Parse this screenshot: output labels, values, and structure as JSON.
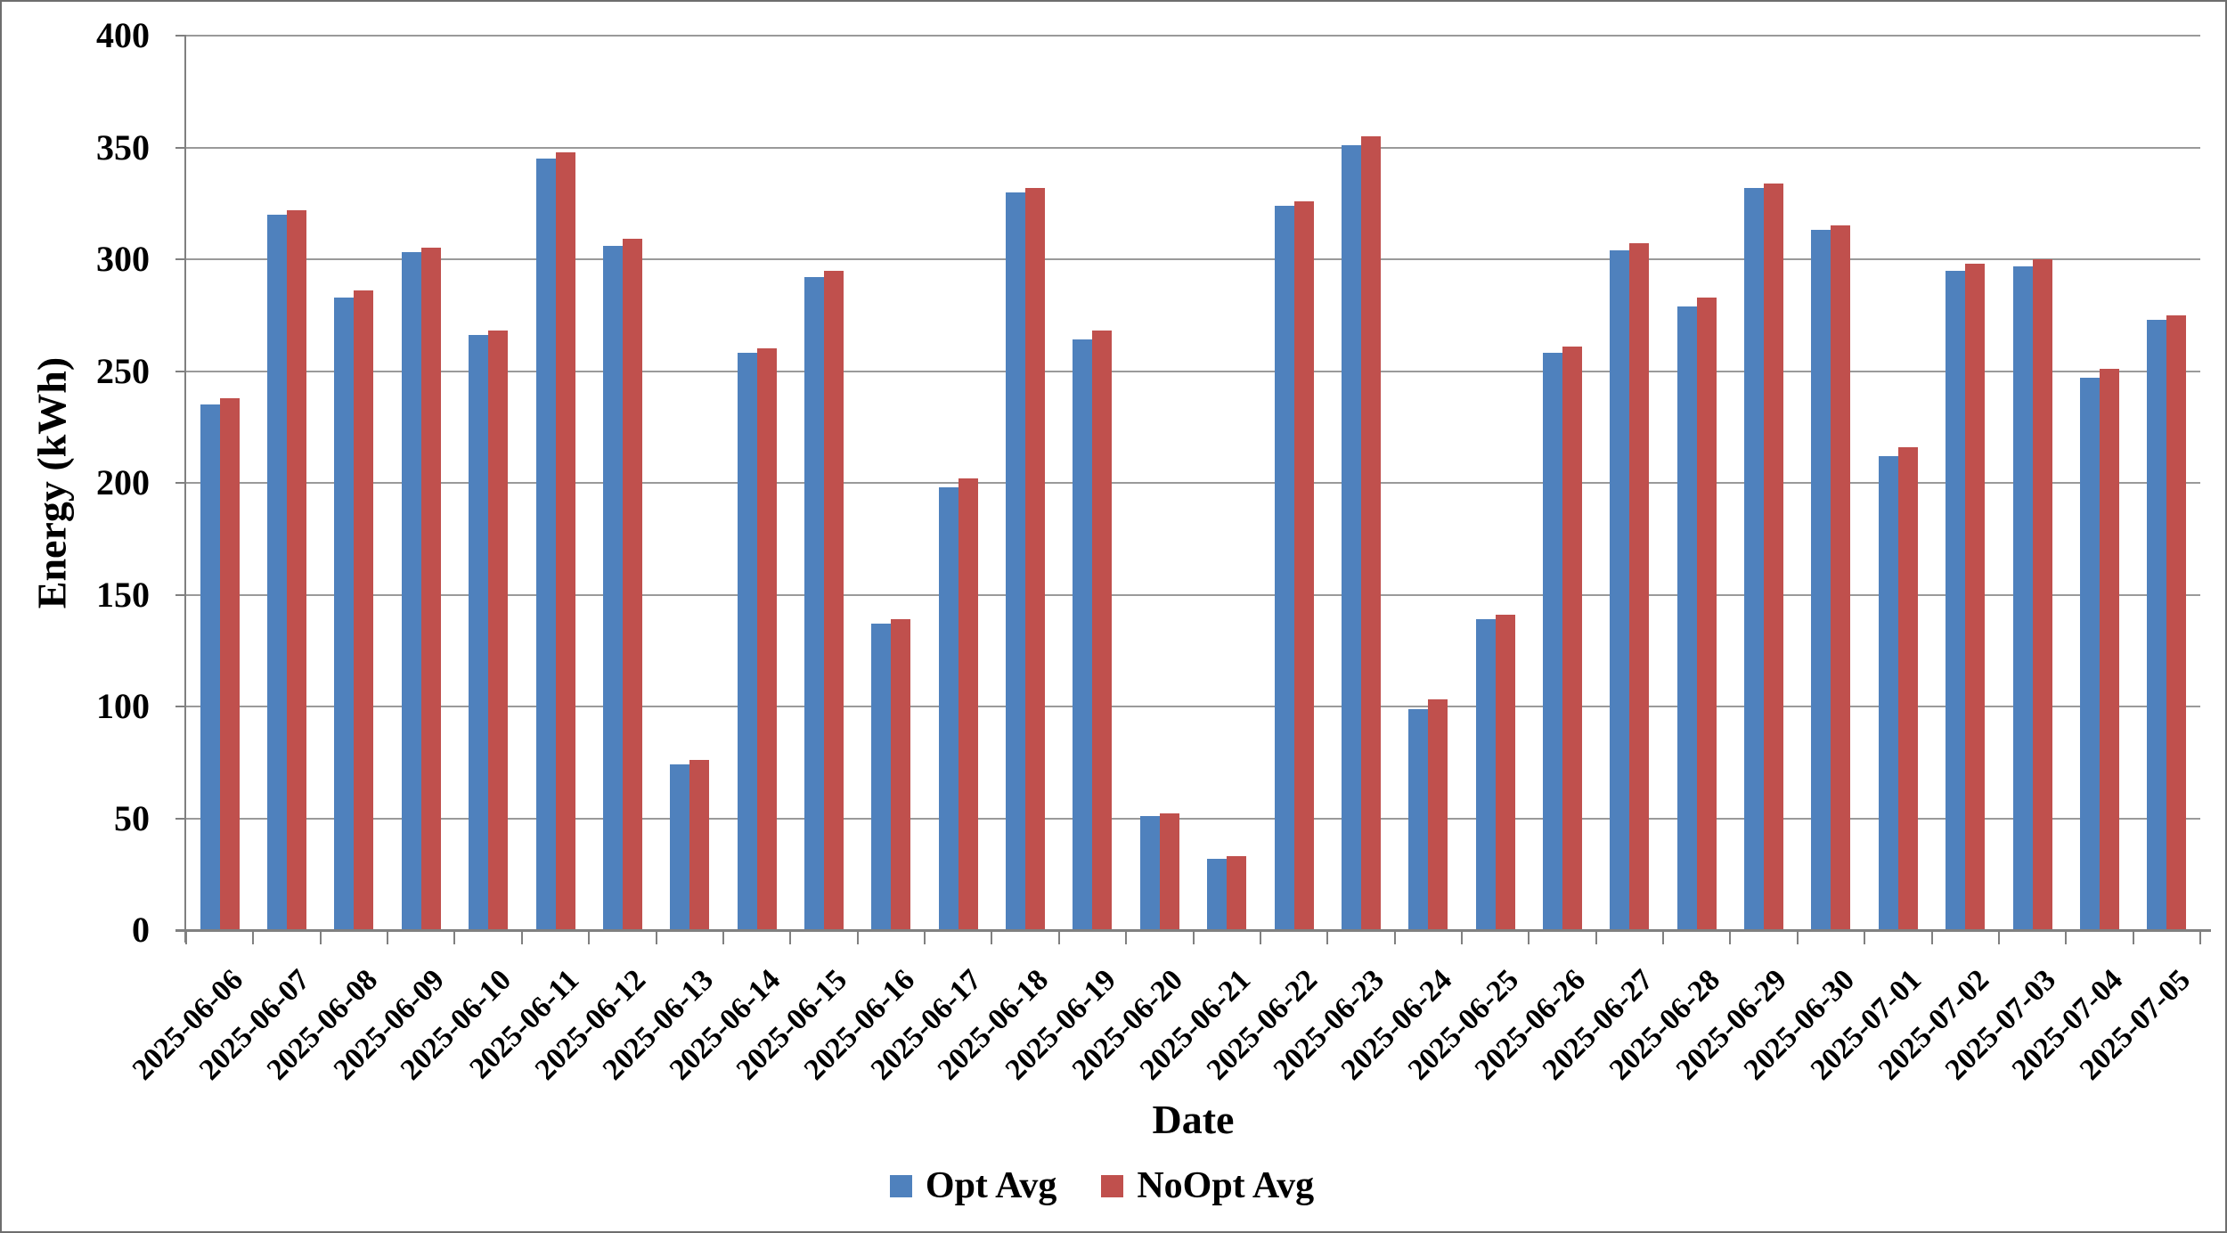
{
  "chart_data": {
    "type": "bar",
    "title": "",
    "xlabel": "Date",
    "ylabel": "Energy (kWh)",
    "ylim": [
      0,
      400
    ],
    "ytick_step": 50,
    "grid": "horizontal",
    "legend_position": "bottom",
    "categories": [
      "2025-06-06",
      "2025-06-07",
      "2025-06-08",
      "2025-06-09",
      "2025-06-10",
      "2025-06-11",
      "2025-06-12",
      "2025-06-13",
      "2025-06-14",
      "2025-06-15",
      "2025-06-16",
      "2025-06-17",
      "2025-06-18",
      "2025-06-19",
      "2025-06-20",
      "2025-06-21",
      "2025-06-22",
      "2025-06-23",
      "2025-06-24",
      "2025-06-25",
      "2025-06-26",
      "2025-06-27",
      "2025-06-28",
      "2025-06-29",
      "2025-06-30",
      "2025-07-01",
      "2025-07-02",
      "2025-07-03",
      "2025-07-04",
      "2025-07-05"
    ],
    "series": [
      {
        "name": "Opt Avg",
        "color": "#4F81BD",
        "values": [
          235,
          320,
          283,
          303,
          266,
          345,
          306,
          74,
          258,
          292,
          137,
          198,
          330,
          264,
          51,
          32,
          324,
          351,
          99,
          139,
          258,
          304,
          279,
          332,
          313,
          212,
          295,
          297,
          247,
          273
        ]
      },
      {
        "name": "NoOpt Avg",
        "color": "#C0504D",
        "values": [
          238,
          322,
          286,
          305,
          268,
          348,
          309,
          76,
          260,
          295,
          139,
          202,
          332,
          268,
          52,
          33,
          326,
          355,
          103,
          141,
          261,
          307,
          283,
          334,
          315,
          216,
          298,
          300,
          251,
          275
        ]
      }
    ]
  }
}
